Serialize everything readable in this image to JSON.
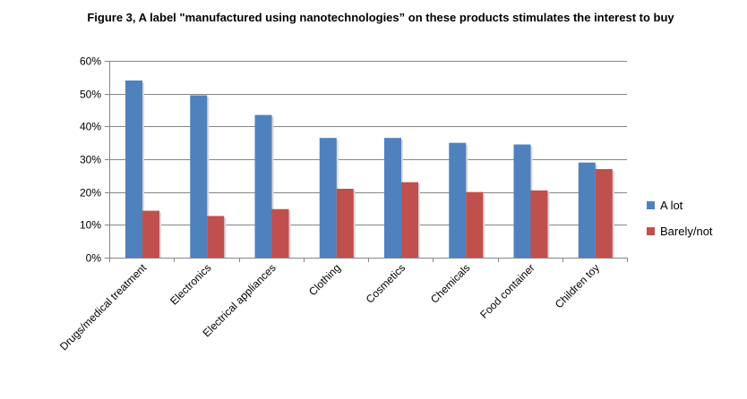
{
  "chart_data": {
    "type": "bar",
    "title": "Figure 3, A label \"manufactured using nanotechnologies” on these products stimulates the interest to buy",
    "xlabel": "",
    "ylabel": "",
    "categories": [
      "Drugs/medical treatment",
      "Electronics",
      "Electrical appliances",
      "Clothing",
      "Cosmetics",
      "Chemicals",
      "Food container",
      "Children toy"
    ],
    "series": [
      {
        "name": "A lot",
        "color": "#4f81bd",
        "values": [
          0.54,
          0.495,
          0.435,
          0.365,
          0.365,
          0.35,
          0.345,
          0.29
        ]
      },
      {
        "name": "Barely/not",
        "color": "#c0504d",
        "values": [
          0.143,
          0.127,
          0.148,
          0.21,
          0.23,
          0.2,
          0.205,
          0.27
        ]
      }
    ],
    "ylim": [
      0,
      0.6
    ],
    "yticks": [
      0,
      0.1,
      0.2,
      0.3,
      0.4,
      0.5,
      0.6
    ],
    "ytick_labels": [
      "0%",
      "10%",
      "20%",
      "30%",
      "40%",
      "50%",
      "60%"
    ],
    "grid": true,
    "legend_position": "right"
  }
}
